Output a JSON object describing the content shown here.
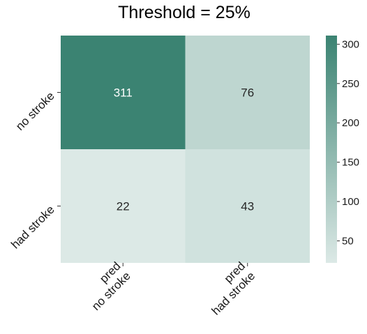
{
  "chart_data": {
    "type": "heatmap",
    "title": "Threshold = 25%",
    "row_labels": [
      "no stroke",
      "had stroke"
    ],
    "col_labels": [
      [
        "pred",
        "no stroke"
      ],
      [
        "pred",
        "had stroke"
      ]
    ],
    "values": [
      [
        311,
        76
      ],
      [
        22,
        43
      ]
    ],
    "colorbar": {
      "min": 22,
      "max": 311,
      "ticks": [
        50,
        100,
        150,
        200,
        250,
        300
      ],
      "color_low": "#dce9e6",
      "color_high": "#3b8372"
    },
    "dark_text_color": "#262626",
    "light_text_color": "#ffffff"
  }
}
